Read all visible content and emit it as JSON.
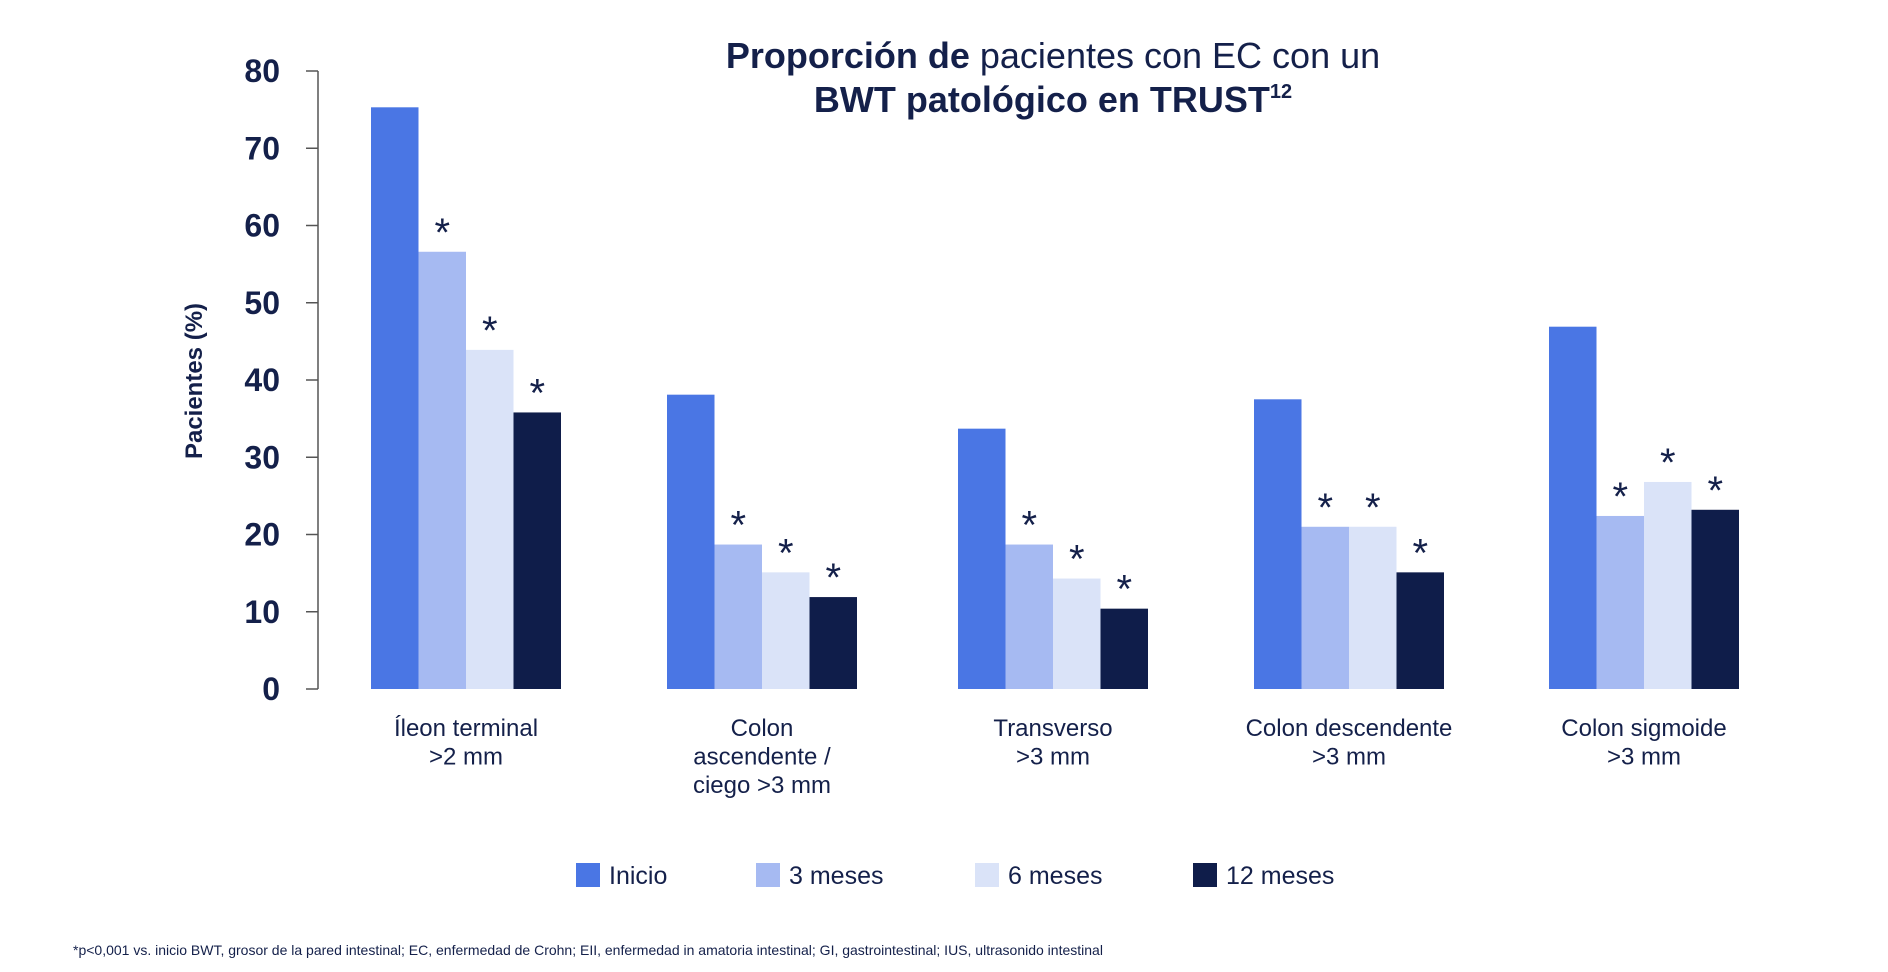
{
  "chart_data": {
    "type": "bar",
    "title": {
      "bold1": "Proporción de",
      "normal1": " pacientes con EC con un",
      "line2": "BWT patológico en TRUST",
      "superscript": "12"
    },
    "ylabel": "Pacientes (%)",
    "xlabel": "",
    "ylim": [
      0,
      80
    ],
    "yticks": [
      "0",
      "10",
      "20",
      "30",
      "40",
      "50",
      "60",
      "70",
      "80"
    ],
    "grid": false,
    "legend_position": "bottom",
    "categories": [
      [
        "Íleon terminal",
        ">2 mm"
      ],
      [
        "Colon",
        "ascendente /",
        "ciego >3 mm"
      ],
      [
        "Transverso",
        ">3 mm"
      ],
      [
        "Colon descendente",
        ">3 mm"
      ],
      [
        "Colon sigmoide",
        ">3 mm"
      ]
    ],
    "series": [
      {
        "name": "Inicio",
        "color": "#4a76e4",
        "values": [
          75.3,
          38.1,
          33.7,
          37.5,
          46.9
        ],
        "significant": [
          false,
          false,
          false,
          false,
          false
        ]
      },
      {
        "name": "3 meses",
        "color": "#a6baf2",
        "values": [
          56.6,
          18.7,
          18.7,
          21.0,
          22.4
        ],
        "significant": [
          true,
          true,
          true,
          true,
          true
        ]
      },
      {
        "name": "6 meses",
        "color": "#dae3f8",
        "values": [
          43.9,
          15.1,
          14.3,
          21.0,
          26.8
        ],
        "significant": [
          true,
          true,
          true,
          true,
          true
        ]
      },
      {
        "name": "12 meses",
        "color": "#0f1d4a",
        "values": [
          35.8,
          11.9,
          10.4,
          15.1,
          23.2
        ],
        "significant": [
          true,
          true,
          true,
          true,
          true
        ]
      }
    ],
    "significance_marker": "*"
  },
  "footnote": "*p<0,001 vs. inicio BWT, grosor de la pared intestinal; EC, enfermedad de Crohn; EII, enfermedad in amatoria intestinal; GI, gastrointestinal; IUS, ultrasonido intestinal"
}
